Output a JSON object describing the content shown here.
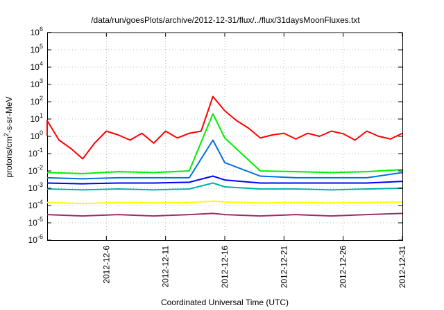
{
  "chart_data": {
    "type": "line",
    "title": "/data/run/goesPlots/archive/2012-12-31/flux/../flux/31daysMoonFluxes.txt",
    "xlabel": "Coordinated Universal Time (UTC)",
    "ylabel": "protons/cm²-s-sr-MeV",
    "yscale": "log",
    "ylim": [
      1e-06,
      1000000.0
    ],
    "xlim": [
      "2012-12-01",
      "2012-12-31"
    ],
    "grid": true,
    "y_ticks": [
      {
        "base": "10",
        "exp": "-6",
        "value": 1e-06
      },
      {
        "base": "10",
        "exp": "-5",
        "value": 1e-05
      },
      {
        "base": "10",
        "exp": "-4",
        "value": 0.0001
      },
      {
        "base": "10",
        "exp": "-3",
        "value": 0.001
      },
      {
        "base": "10",
        "exp": "-2",
        "value": 0.01
      },
      {
        "base": "10",
        "exp": "-1",
        "value": 0.1
      },
      {
        "base": "10",
        "exp": "0",
        "value": 1.0
      },
      {
        "base": "10",
        "exp": "1",
        "value": 10.0
      },
      {
        "base": "10",
        "exp": "2",
        "value": 100.0
      },
      {
        "base": "10",
        "exp": "3",
        "value": 1000.0
      },
      {
        "base": "10",
        "exp": "4",
        "value": 10000.0
      },
      {
        "base": "10",
        "exp": "5",
        "value": 100000.0
      },
      {
        "base": "10",
        "exp": "6",
        "value": 1000000.0
      }
    ],
    "x_ticks": [
      "2012-12-6",
      "2012-12-11",
      "2012-12-16",
      "2012-12-21",
      "2012-12-26",
      "2012-12-31"
    ],
    "x_tick_dates": [
      "2012-12-06",
      "2012-12-11",
      "2012-12-16",
      "2012-12-21",
      "2012-12-26",
      "2012-12-31"
    ],
    "series": [
      {
        "color": "#9b2d6a",
        "x": [
          "2012-12-01",
          "2012-12-04",
          "2012-12-07",
          "2012-12-10",
          "2012-12-13",
          "2012-12-15",
          "2012-12-16",
          "2012-12-19",
          "2012-12-22",
          "2012-12-25",
          "2012-12-28",
          "2012-12-31"
        ],
        "y": [
          3e-05,
          2.5e-05,
          3e-05,
          2.5e-05,
          3e-05,
          3.5e-05,
          3e-05,
          2.5e-05,
          3e-05,
          2.5e-05,
          3e-05,
          3.5e-05
        ]
      },
      {
        "color": "#ffff00",
        "x": [
          "2012-12-01",
          "2012-12-04",
          "2012-12-07",
          "2012-12-10",
          "2012-12-13",
          "2012-12-15",
          "2012-12-16",
          "2012-12-19",
          "2012-12-22",
          "2012-12-25",
          "2012-12-28",
          "2012-12-31"
        ],
        "y": [
          0.00015,
          0.00013,
          0.00015,
          0.00014,
          0.00015,
          0.00018,
          0.00016,
          0.00014,
          0.00015,
          0.00014,
          0.00015,
          0.00016
        ]
      },
      {
        "color": "#00b0b0",
        "x": [
          "2012-12-01",
          "2012-12-04",
          "2012-12-07",
          "2012-12-10",
          "2012-12-13",
          "2012-12-15",
          "2012-12-16",
          "2012-12-19",
          "2012-12-22",
          "2012-12-25",
          "2012-12-28",
          "2012-12-31"
        ],
        "y": [
          0.0009,
          0.0008,
          0.0009,
          0.0008,
          0.0009,
          0.002,
          0.0012,
          0.0009,
          0.0009,
          0.0008,
          0.0009,
          0.001
        ]
      },
      {
        "color": "#0000ff",
        "x": [
          "2012-12-01",
          "2012-12-04",
          "2012-12-07",
          "2012-12-10",
          "2012-12-13",
          "2012-12-15",
          "2012-12-16",
          "2012-12-19",
          "2012-12-22",
          "2012-12-25",
          "2012-12-28",
          "2012-12-31"
        ],
        "y": [
          0.002,
          0.0018,
          0.002,
          0.002,
          0.0022,
          0.005,
          0.003,
          0.002,
          0.002,
          0.002,
          0.002,
          0.0025
        ]
      },
      {
        "color": "#0070e0",
        "x": [
          "2012-12-01",
          "2012-12-04",
          "2012-12-07",
          "2012-12-10",
          "2012-12-13",
          "2012-12-15",
          "2012-12-16",
          "2012-12-19",
          "2012-12-22",
          "2012-12-25",
          "2012-12-28",
          "2012-12-31"
        ],
        "y": [
          0.004,
          0.0035,
          0.004,
          0.004,
          0.004,
          0.6,
          0.03,
          0.005,
          0.004,
          0.004,
          0.004,
          0.008
        ]
      },
      {
        "color": "#00ee00",
        "x": [
          "2012-12-01",
          "2012-12-04",
          "2012-12-07",
          "2012-12-10",
          "2012-12-13",
          "2012-12-15",
          "2012-12-16",
          "2012-12-19",
          "2012-12-22",
          "2012-12-25",
          "2012-12-28",
          "2012-12-31"
        ],
        "y": [
          0.008,
          0.007,
          0.009,
          0.008,
          0.01,
          20,
          0.8,
          0.01,
          0.009,
          0.008,
          0.009,
          0.012
        ]
      },
      {
        "color": "#ff0000",
        "x": [
          "2012-12-01",
          "2012-12-01",
          "2012-12-02",
          "2012-12-03",
          "2012-12-04",
          "2012-12-05",
          "2012-12-06",
          "2012-12-07",
          "2012-12-08",
          "2012-12-09",
          "2012-12-10",
          "2012-12-11",
          "2012-12-12",
          "2012-12-13",
          "2012-12-14",
          "2012-12-15",
          "2012-12-16",
          "2012-12-17",
          "2012-12-18",
          "2012-12-19",
          "2012-12-20",
          "2012-12-21",
          "2012-12-22",
          "2012-12-23",
          "2012-12-24",
          "2012-12-25",
          "2012-12-26",
          "2012-12-27",
          "2012-12-28",
          "2012-12-29",
          "2012-12-30",
          "2012-12-31"
        ],
        "y": [
          1.0,
          8,
          0.6,
          0.2,
          0.05,
          0.4,
          2,
          1.2,
          0.6,
          1.5,
          0.4,
          2,
          0.8,
          1.5,
          2,
          200,
          30,
          8,
          3,
          0.8,
          1.2,
          1.5,
          0.7,
          1.5,
          1.0,
          2,
          1.4,
          0.6,
          2,
          1.0,
          0.7,
          1.5
        ]
      }
    ]
  }
}
